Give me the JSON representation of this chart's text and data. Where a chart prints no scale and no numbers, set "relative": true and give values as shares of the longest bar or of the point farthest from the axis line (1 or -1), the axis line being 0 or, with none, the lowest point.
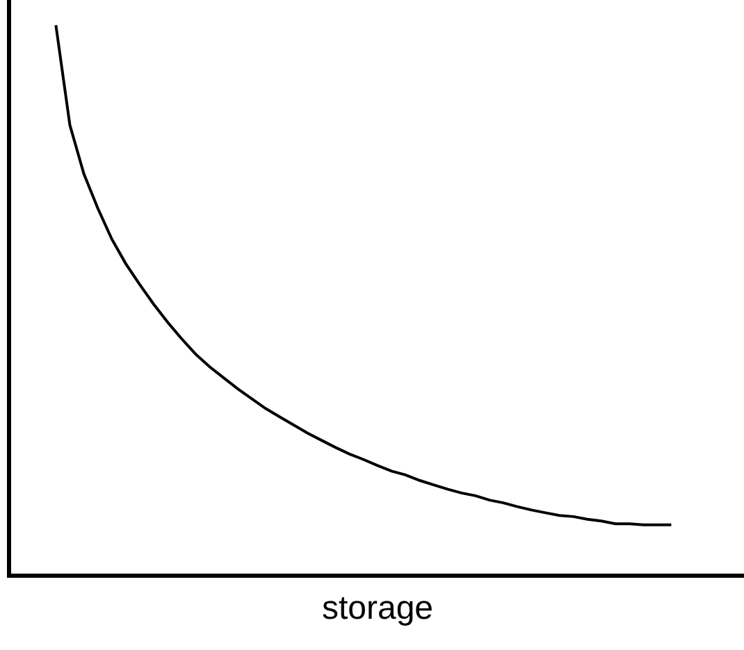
{
  "chart_data": {
    "type": "line",
    "relative": true,
    "xlabel": "storage",
    "tick_labels": false,
    "marker": "none",
    "line_style": "solid",
    "categories": [
      null,
      null,
      null,
      null,
      null,
      null,
      null,
      null,
      null,
      null,
      null,
      null,
      null,
      null,
      null,
      null,
      null,
      null,
      null,
      null,
      null,
      null,
      null,
      null,
      null,
      null,
      null,
      null,
      null,
      null,
      null,
      null,
      null,
      null,
      null,
      null,
      null,
      null,
      null,
      null,
      null,
      null,
      null,
      null,
      null
    ],
    "series": [
      {
        "color": "#000000",
        "values": [
          1.0,
          0.818,
          0.729,
          0.666,
          0.61,
          0.565,
          0.527,
          0.491,
          0.458,
          0.428,
          0.4,
          0.377,
          0.357,
          0.337,
          0.319,
          0.301,
          0.286,
          0.271,
          0.256,
          0.243,
          0.23,
          0.218,
          0.208,
          0.197,
          0.187,
          0.18,
          0.17,
          0.162,
          0.154,
          0.147,
          0.142,
          0.134,
          0.129,
          0.122,
          0.116,
          0.111,
          0.106,
          0.104,
          0.099,
          0.096,
          0.091,
          0.091,
          0.089,
          0.089,
          0.089
        ]
      }
    ]
  }
}
